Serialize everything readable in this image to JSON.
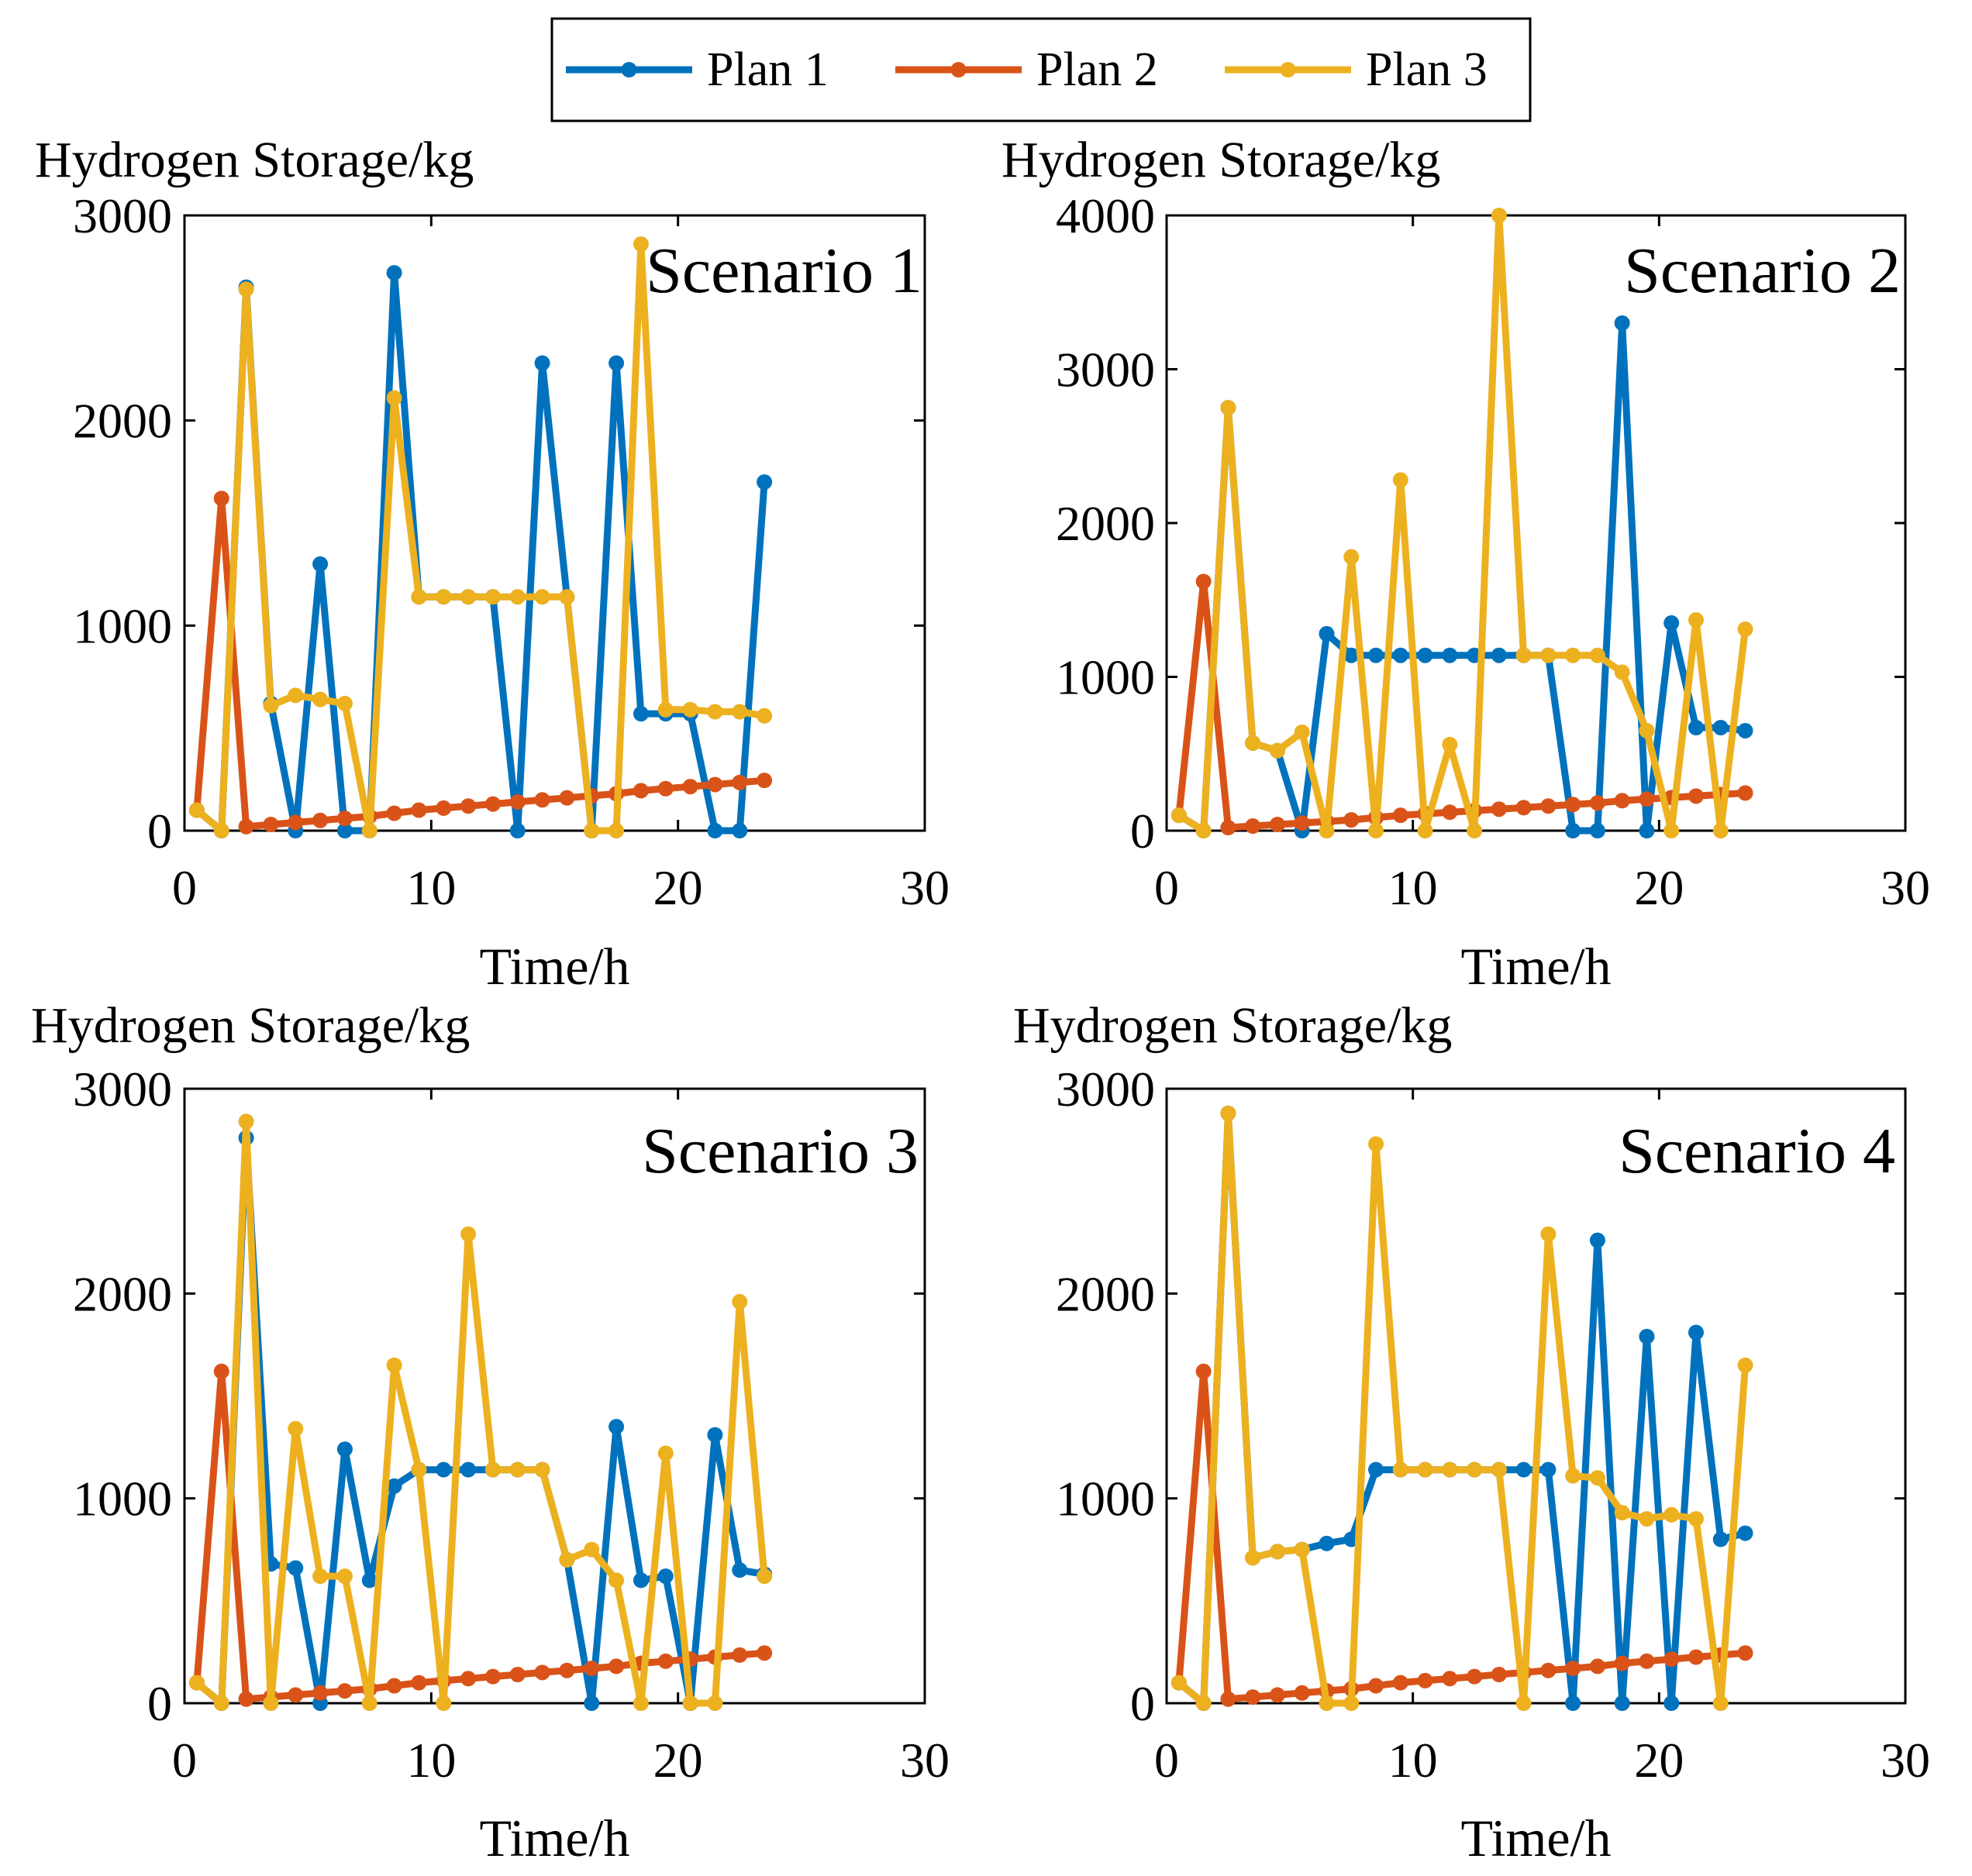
{
  "legend": {
    "entries": [
      {
        "label": "Plan 1",
        "color": "#0072BD"
      },
      {
        "label": "Plan 2",
        "color": "#D95319"
      },
      {
        "label": "Plan 3",
        "color": "#EDB120"
      }
    ]
  },
  "chart_data": [
    {
      "type": "line",
      "title": "Scenario 1",
      "ylabel": "Hydrogen Storage/kg",
      "xlabel": "Time/h",
      "xlim": [
        0,
        30
      ],
      "ylim": [
        0,
        3000
      ],
      "xticks": [
        0,
        10,
        20,
        30
      ],
      "yticks": [
        0,
        1000,
        2000,
        3000
      ],
      "x": [
        0.5,
        1.5,
        2.5,
        3.5,
        4.5,
        5.5,
        6.5,
        7.5,
        8.5,
        9.5,
        10.5,
        11.5,
        12.5,
        13.5,
        14.5,
        15.5,
        16.5,
        17.5,
        18.5,
        19.5,
        20.5,
        21.5,
        22.5,
        23.5
      ],
      "series": [
        {
          "name": "Plan 1",
          "color": "#0072BD",
          "values": [
            100,
            0,
            2650,
            620,
            0,
            1300,
            0,
            0,
            2720,
            1140,
            1140,
            1140,
            1140,
            0,
            2280,
            1140,
            0,
            2280,
            570,
            570,
            570,
            0,
            0,
            1700
          ]
        },
        {
          "name": "Plan 2",
          "color": "#D95319",
          "values": [
            100,
            1620,
            20,
            30,
            40,
            50,
            60,
            70,
            85,
            100,
            110,
            120,
            130,
            140,
            150,
            160,
            170,
            180,
            195,
            205,
            215,
            225,
            235,
            245
          ]
        },
        {
          "name": "Plan 3",
          "color": "#EDB120",
          "values": [
            100,
            0,
            2640,
            610,
            660,
            640,
            620,
            0,
            2110,
            1140,
            1140,
            1140,
            1140,
            1140,
            1140,
            1140,
            0,
            0,
            2860,
            590,
            590,
            580,
            580,
            560
          ]
        }
      ]
    },
    {
      "type": "line",
      "title": "Scenario 2",
      "ylabel": "Hydrogen Storage/kg",
      "xlabel": "Time/h",
      "xlim": [
        0,
        30
      ],
      "ylim": [
        0,
        4000
      ],
      "xticks": [
        0,
        10,
        20,
        30
      ],
      "yticks": [
        0,
        1000,
        2000,
        3000,
        4000
      ],
      "x": [
        0.5,
        1.5,
        2.5,
        3.5,
        4.5,
        5.5,
        6.5,
        7.5,
        8.5,
        9.5,
        10.5,
        11.5,
        12.5,
        13.5,
        14.5,
        15.5,
        16.5,
        17.5,
        18.5,
        19.5,
        20.5,
        21.5,
        22.5,
        23.5
      ],
      "series": [
        {
          "name": "Plan 1",
          "color": "#0072BD",
          "values": [
            100,
            0,
            2750,
            570,
            520,
            0,
            1280,
            1140,
            1140,
            1140,
            1140,
            1140,
            1140,
            1140,
            1140,
            1140,
            0,
            0,
            3300,
            0,
            1350,
            670,
            670,
            650
          ]
        },
        {
          "name": "Plan 2",
          "color": "#D95319",
          "values": [
            100,
            1620,
            20,
            30,
            40,
            50,
            60,
            70,
            85,
            100,
            110,
            120,
            130,
            140,
            150,
            160,
            170,
            180,
            195,
            205,
            215,
            225,
            235,
            245
          ]
        },
        {
          "name": "Plan 3",
          "color": "#EDB120",
          "values": [
            100,
            0,
            2750,
            570,
            520,
            640,
            0,
            1780,
            0,
            2280,
            0,
            560,
            0,
            4000,
            1140,
            1140,
            1140,
            1140,
            1030,
            650,
            0,
            1370,
            0,
            1310
          ]
        }
      ]
    },
    {
      "type": "line",
      "title": "Scenario 3",
      "ylabel": "Hydrogen Storage/kg",
      "xlabel": "Time/h",
      "xlim": [
        0,
        30
      ],
      "ylim": [
        0,
        3000
      ],
      "xticks": [
        0,
        10,
        20,
        30
      ],
      "yticks": [
        0,
        1000,
        2000,
        3000
      ],
      "x": [
        0.5,
        1.5,
        2.5,
        3.5,
        4.5,
        5.5,
        6.5,
        7.5,
        8.5,
        9.5,
        10.5,
        11.5,
        12.5,
        13.5,
        14.5,
        15.5,
        16.5,
        17.5,
        18.5,
        19.5,
        20.5,
        21.5,
        22.5,
        23.5
      ],
      "series": [
        {
          "name": "Plan 1",
          "color": "#0072BD",
          "values": [
            100,
            0,
            2760,
            680,
            660,
            0,
            1240,
            600,
            1060,
            1140,
            1140,
            1140,
            1140,
            1140,
            1140,
            700,
            0,
            1350,
            600,
            620,
            0,
            1310,
            650,
            630
          ]
        },
        {
          "name": "Plan 2",
          "color": "#D95319",
          "values": [
            100,
            1620,
            20,
            30,
            40,
            50,
            60,
            70,
            85,
            100,
            110,
            120,
            130,
            140,
            150,
            160,
            170,
            180,
            195,
            205,
            215,
            225,
            235,
            245
          ]
        },
        {
          "name": "Plan 3",
          "color": "#EDB120",
          "values": [
            100,
            0,
            2840,
            0,
            1340,
            620,
            620,
            0,
            1650,
            1140,
            0,
            2290,
            1140,
            1140,
            1140,
            700,
            750,
            600,
            0,
            1220,
            0,
            0,
            1960,
            620
          ]
        }
      ]
    },
    {
      "type": "line",
      "title": "Scenario 4",
      "ylabel": "Hydrogen Storage/kg",
      "xlabel": "Time/h",
      "xlim": [
        0,
        30
      ],
      "ylim": [
        0,
        3000
      ],
      "xticks": [
        0,
        10,
        20,
        30
      ],
      "yticks": [
        0,
        1000,
        2000,
        3000
      ],
      "x": [
        0.5,
        1.5,
        2.5,
        3.5,
        4.5,
        5.5,
        6.5,
        7.5,
        8.5,
        9.5,
        10.5,
        11.5,
        12.5,
        13.5,
        14.5,
        15.5,
        16.5,
        17.5,
        18.5,
        19.5,
        20.5,
        21.5,
        22.5,
        23.5
      ],
      "series": [
        {
          "name": "Plan 1",
          "color": "#0072BD",
          "values": [
            100,
            0,
            2880,
            710,
            740,
            750,
            780,
            800,
            1140,
            1140,
            1140,
            1140,
            1140,
            1140,
            1140,
            1140,
            0,
            2260,
            0,
            1790,
            0,
            1810,
            800,
            830
          ]
        },
        {
          "name": "Plan 2",
          "color": "#D95319",
          "values": [
            100,
            1620,
            20,
            30,
            40,
            50,
            60,
            70,
            85,
            100,
            110,
            120,
            130,
            140,
            150,
            160,
            170,
            180,
            195,
            205,
            215,
            225,
            235,
            245
          ]
        },
        {
          "name": "Plan 3",
          "color": "#EDB120",
          "values": [
            100,
            0,
            2880,
            710,
            740,
            750,
            0,
            0,
            2730,
            1140,
            1140,
            1140,
            1140,
            1140,
            0,
            2290,
            1110,
            1100,
            930,
            900,
            920,
            900,
            0,
            1650
          ]
        }
      ]
    }
  ]
}
